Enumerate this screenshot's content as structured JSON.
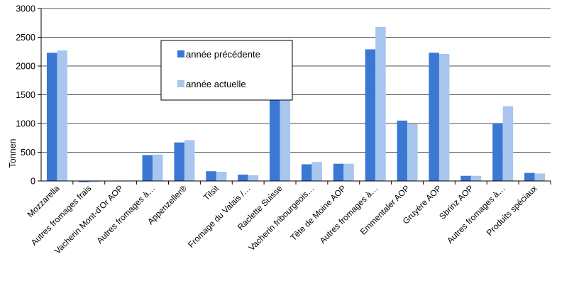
{
  "chart_data": {
    "type": "bar",
    "title": "",
    "xlabel": "",
    "ylabel": "Tonnen",
    "ylim": [
      0,
      3000
    ],
    "yticks": [
      0,
      500,
      1000,
      1500,
      2000,
      2500,
      3000
    ],
    "grid": true,
    "legend_position": "upper-center",
    "categories": [
      "Mozzarella",
      "Autres fromages frais",
      "Vacherin Mont-d'Or AOP",
      "Autres fromages à…",
      "Appenzeller®",
      "Tilsit",
      "Fromage du Valais /…",
      "Raclette Suisse",
      "Vacherin fribourgeois…",
      "Tête de Moine AOP",
      "Autres fromages à…",
      "Emmentaler AOP",
      "Gruyère AOP",
      "Sbrinz AOP",
      "Autres fromages à…",
      "Produits spéciaux"
    ],
    "series": [
      {
        "name": "année précédente",
        "color": "#3a78d4",
        "values": [
          2230,
          -20,
          0,
          450,
          670,
          170,
          110,
          1430,
          290,
          300,
          2290,
          1050,
          2230,
          90,
          1000,
          140
        ]
      },
      {
        "name": "année actuelle",
        "color": "#a8c6ee",
        "values": [
          2270,
          -20,
          0,
          460,
          710,
          160,
          100,
          1830,
          330,
          300,
          2680,
          990,
          2210,
          90,
          1300,
          130
        ]
      }
    ]
  }
}
